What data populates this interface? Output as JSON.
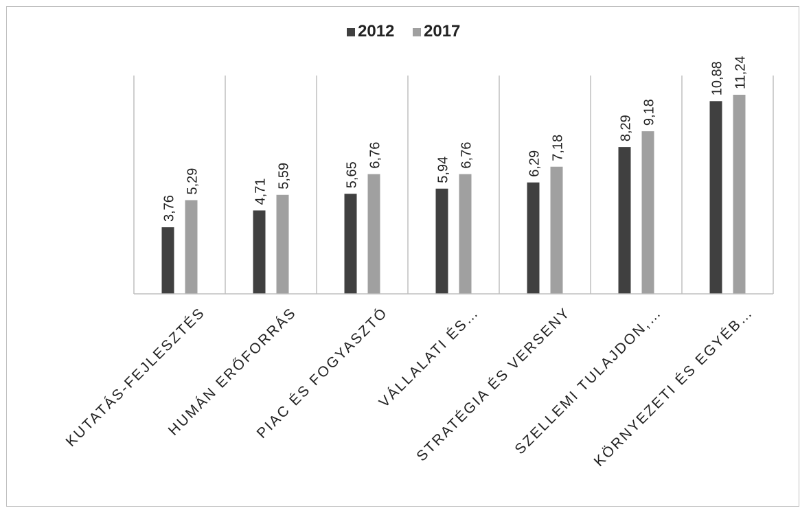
{
  "chart_data": {
    "type": "bar",
    "categories": [
      "KUTATÁS-FEJLESZTÉS",
      "HUMÁN ERŐFORRÁS",
      "PIAC ÉS FOGYASZTÓ",
      "VÁLLALATI ÉS…",
      "STRATÉGIA ÉS VERSENY",
      "SZELLEMI TULAJDON,…",
      "KÖRNYEZETI ÉS EGYÉB…"
    ],
    "series": [
      {
        "name": "2012",
        "values": [
          3.76,
          4.71,
          5.65,
          5.94,
          6.29,
          8.29,
          10.88
        ],
        "labels": [
          "3,76",
          "4,71",
          "5,65",
          "5,94",
          "6,29",
          "8,29",
          "10,88"
        ],
        "color": "#404040"
      },
      {
        "name": "2017",
        "values": [
          5.29,
          5.59,
          6.76,
          6.76,
          7.18,
          9.18,
          11.24
        ],
        "labels": [
          "5,29",
          "5,59",
          "6,76",
          "6,76",
          "7,18",
          "9,18",
          "11,24"
        ],
        "color": "#a0a0a0"
      }
    ],
    "ylim": [
      0,
      12
    ],
    "grid": "vertical-category-separators",
    "legend": "top-center",
    "title": "",
    "xlabel": "",
    "ylabel": ""
  }
}
